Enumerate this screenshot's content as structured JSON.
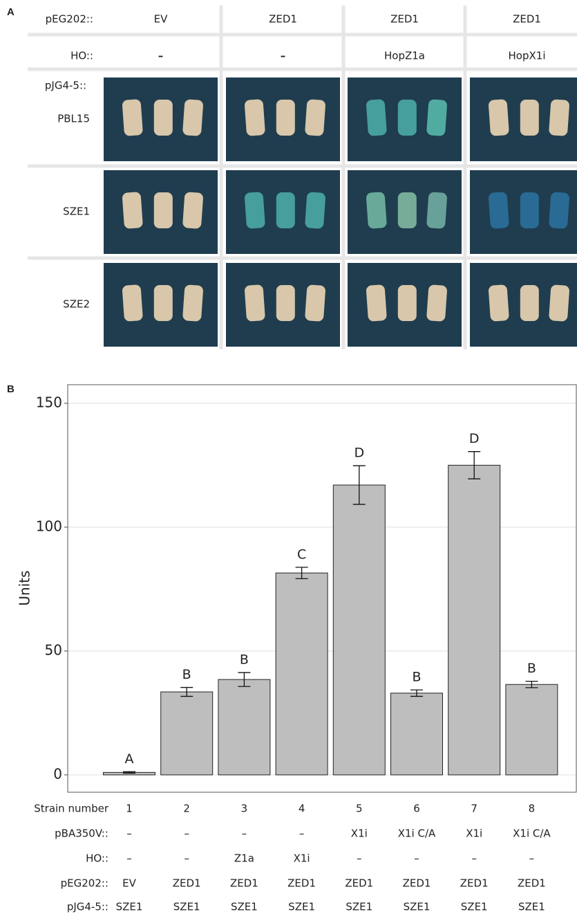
{
  "panel_a": {
    "label": "A",
    "header_rows": [
      {
        "label": "pEG202::",
        "cells": [
          "EV",
          "ZED1",
          "ZED1",
          "ZED1"
        ]
      },
      {
        "label": "HO::",
        "cells": [
          "–",
          "–",
          "HopZ1a",
          "HopX1i"
        ]
      }
    ],
    "row_header": "pJG4-5::",
    "rows": [
      "PBL15",
      "SZE1",
      "SZE2"
    ]
  },
  "chart_data": {
    "type": "bar",
    "panel_label": "B",
    "ylabel": "Units",
    "categories": [
      "1",
      "2",
      "3",
      "4",
      "5",
      "6",
      "7",
      "8"
    ],
    "series": [
      {
        "name": "Units",
        "color": "#bebebe",
        "values": [
          1,
          33.5,
          38.5,
          81.5,
          117,
          33,
          125,
          36.5
        ],
        "errors": [
          0.3,
          1.8,
          2.8,
          2.3,
          7.8,
          1.3,
          5.5,
          1.3
        ]
      }
    ],
    "annotations": [
      "A",
      "B",
      "B",
      "C",
      "D",
      "B",
      "D",
      "B"
    ],
    "ylim": [
      -7,
      157.5
    ],
    "yticks": [
      0,
      50,
      100,
      150
    ],
    "grid": true,
    "category_label": "Strain number",
    "rows": [
      {
        "label": "pBA350V::",
        "cells": [
          "–",
          "–",
          "–",
          "–",
          "X1i",
          "X1i C/A",
          "X1i",
          "X1i C/A"
        ]
      },
      {
        "label": "HO::",
        "cells": [
          "–",
          "–",
          "Z1a",
          "X1i",
          "–",
          "–",
          "–",
          "–"
        ]
      },
      {
        "label": "pEG202::",
        "cells": [
          "EV",
          "ZED1",
          "ZED1",
          "ZED1",
          "ZED1",
          "ZED1",
          "ZED1",
          "ZED1"
        ]
      },
      {
        "label": "pJG4-5::",
        "cells": [
          "SZE1",
          "SZE1",
          "SZE1",
          "SZE1",
          "SZE1",
          "SZE1",
          "SZE1",
          "SZE1"
        ]
      }
    ]
  }
}
